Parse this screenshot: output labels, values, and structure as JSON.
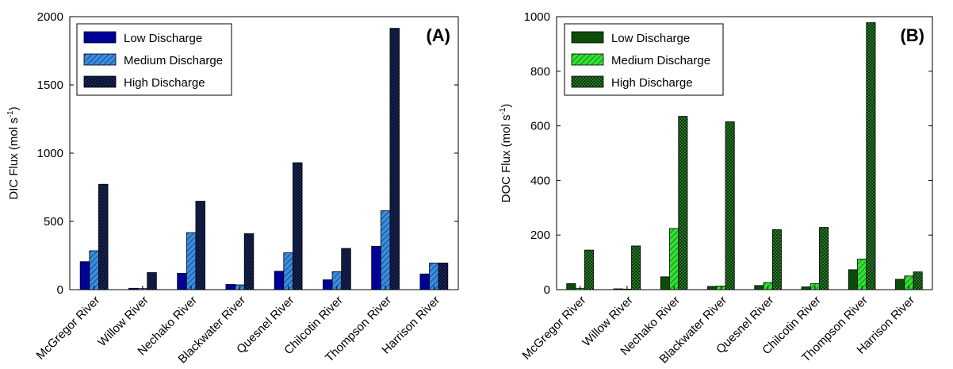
{
  "chart_data": [
    {
      "type": "bar",
      "panel": "(A)",
      "categories": [
        "McGregor River",
        "Willow River",
        "Nechako River",
        "Blackwater River",
        "Quesnel River",
        "Chilcotin River",
        "Thompson River",
        "Harrison River"
      ],
      "series": [
        {
          "name": "Low Discharge",
          "values": [
            205,
            10,
            120,
            38,
            135,
            72,
            318,
            115
          ]
        },
        {
          "name": "Medium Discharge",
          "values": [
            285,
            8,
            418,
            35,
            270,
            132,
            578,
            195
          ]
        },
        {
          "name": "High Discharge",
          "values": [
            772,
            125,
            648,
            410,
            930,
            302,
            1915,
            195
          ]
        }
      ],
      "ylabel": "DIC Flux (mol s",
      "ylabel_sup": "-1",
      "ylabel_suffix": ")",
      "ylim": [
        0,
        2000
      ],
      "yticks": [
        0,
        500,
        1000,
        1500,
        2000
      ],
      "grid": false,
      "legend": "top-left",
      "colors": [
        "#000099",
        "#3a8de0",
        "#0d1b45"
      ]
    },
    {
      "type": "bar",
      "panel": "(B)",
      "categories": [
        "McGregor River",
        "Willow River",
        "Nechako River",
        "Blackwater River",
        "Quesnel River",
        "Chilcotin River",
        "Thompson River",
        "Harrison River"
      ],
      "series": [
        {
          "name": "Low Discharge",
          "values": [
            22,
            3,
            47,
            12,
            15,
            10,
            73,
            38
          ]
        },
        {
          "name": "Medium Discharge",
          "values": [
            5,
            2,
            224,
            13,
            26,
            22,
            112,
            50
          ]
        },
        {
          "name": "High Discharge",
          "values": [
            145,
            160,
            635,
            615,
            220,
            228,
            978,
            65
          ]
        }
      ],
      "ylabel": "DOC Flux (mol s",
      "ylabel_sup": "-1",
      "ylabel_suffix": ")",
      "ylim": [
        0,
        1000
      ],
      "yticks": [
        0,
        200,
        400,
        600,
        800,
        1000
      ],
      "grid": false,
      "legend": "top-left",
      "colors": [
        "#0a4d0a",
        "#33e033",
        "#1f6e1f"
      ]
    }
  ]
}
